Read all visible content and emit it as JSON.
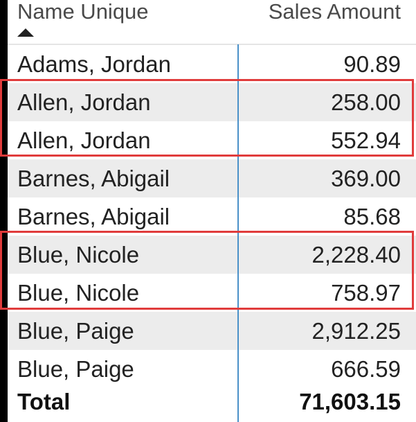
{
  "table": {
    "columns": {
      "name_header": "Name Unique",
      "sales_header": "Sales Amount",
      "sort_indicator": "ascending-triangle-icon"
    },
    "rows": [
      {
        "name": "Adams, Jordan",
        "amount": "90.89"
      },
      {
        "name": "Allen, Jordan",
        "amount": "258.00"
      },
      {
        "name": "Allen, Jordan",
        "amount": "552.94"
      },
      {
        "name": "Barnes, Abigail",
        "amount": "369.00"
      },
      {
        "name": "Barnes, Abigail",
        "amount": "85.68"
      },
      {
        "name": "Blue, Nicole",
        "amount": "2,228.40"
      },
      {
        "name": "Blue, Nicole",
        "amount": "758.97"
      },
      {
        "name": "Blue, Paige",
        "amount": "2,912.25"
      },
      {
        "name": "Blue, Paige",
        "amount": "666.59"
      }
    ],
    "total": {
      "label": "Total",
      "amount": "71,603.15"
    }
  },
  "colors": {
    "highlight_border": "#e03c3c",
    "column_separator": "#4a90c8",
    "alternate_row": "#ececec",
    "background": "#ffffff",
    "outside": "#000000"
  }
}
